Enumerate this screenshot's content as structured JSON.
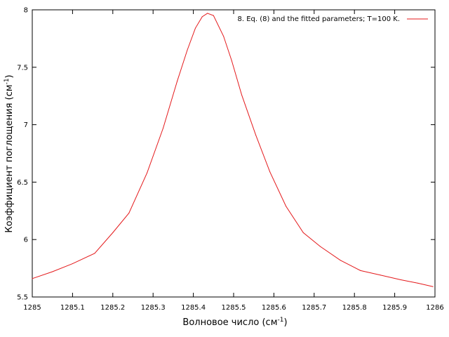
{
  "chart_data": {
    "type": "line",
    "xlabel": "Волновое число (см",
    "xlabel_sup": "-1",
    "xlabel_end": ")",
    "ylabel": "Коэффициент поглощения (см",
    "ylabel_sup": "-1",
    "ylabel_end": ")",
    "xlim": [
      1285,
      1286
    ],
    "ylim": [
      5.5,
      8
    ],
    "xticks": [
      1285,
      1285.1,
      1285.2,
      1285.3,
      1285.4,
      1285.5,
      1285.6,
      1285.7,
      1285.8,
      1285.9,
      1286
    ],
    "xtick_labels": [
      "1285",
      "1285.1",
      "1285.2",
      "1285.3",
      "1285.4",
      "1285.5",
      "1285.6",
      "1285.7",
      "1285.8",
      "1285.9",
      "1286"
    ],
    "yticks": [
      5.5,
      6,
      6.5,
      7,
      7.5,
      8
    ],
    "ytick_labels": [
      "5.5",
      "6",
      "6.5",
      "7",
      "7.5",
      "8"
    ],
    "grid": false,
    "legend_position": "top-right",
    "series": [
      {
        "name": "8. Eq. (8) and the fitted parameters; T=100 K.",
        "color": "#e41a1c",
        "x": [
          1285.0,
          1285.05,
          1285.1,
          1285.155,
          1285.2,
          1285.24,
          1285.285,
          1285.325,
          1285.36,
          1285.385,
          1285.405,
          1285.422,
          1285.435,
          1285.45,
          1285.475,
          1285.495,
          1285.52,
          1285.555,
          1285.59,
          1285.63,
          1285.673,
          1285.715,
          1285.765,
          1285.815,
          1285.865,
          1285.915,
          1285.958,
          1285.995
        ],
        "y": [
          5.66,
          5.72,
          5.79,
          5.88,
          6.06,
          6.23,
          6.58,
          6.97,
          7.38,
          7.65,
          7.84,
          7.94,
          7.97,
          7.95,
          7.77,
          7.56,
          7.26,
          6.91,
          6.59,
          6.29,
          6.06,
          5.94,
          5.82,
          5.73,
          5.69,
          5.65,
          5.62,
          5.59
        ]
      }
    ]
  }
}
